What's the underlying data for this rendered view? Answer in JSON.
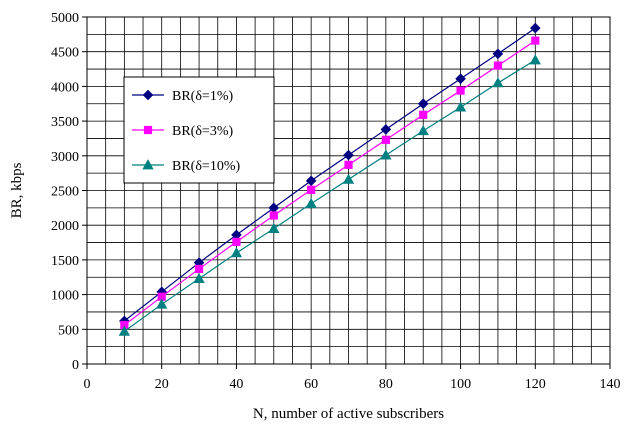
{
  "chart_data": {
    "type": "line",
    "xlabel": "N, number of active subscribers",
    "ylabel": "BR, kbps",
    "xlim": [
      0,
      140
    ],
    "ylim": [
      0,
      5000
    ],
    "x_ticks": [
      0,
      20,
      40,
      60,
      80,
      100,
      120,
      140
    ],
    "y_ticks": [
      0,
      500,
      1000,
      1500,
      2000,
      2500,
      3000,
      3500,
      4000,
      4500,
      5000
    ],
    "x_grid_step": 5,
    "y_grid_step": 250,
    "grid": true,
    "legend_position": "upper-left",
    "x": [
      10,
      20,
      30,
      40,
      50,
      60,
      70,
      80,
      90,
      100,
      110,
      120
    ],
    "series": [
      {
        "name": "BR(δ=1%)",
        "color": "#000080",
        "marker": "diamond",
        "values": [
          620,
          1040,
          1460,
          1860,
          2250,
          2640,
          3010,
          3380,
          3750,
          4110,
          4470,
          4840
        ]
      },
      {
        "name": "BR(δ=3%)",
        "color": "#ff00ff",
        "marker": "square",
        "values": [
          560,
          970,
          1370,
          1760,
          2140,
          2510,
          2870,
          3230,
          3590,
          3940,
          4300,
          4660
        ]
      },
      {
        "name": "BR(δ=10%)",
        "color": "#008080",
        "marker": "triangle",
        "values": [
          470,
          860,
          1230,
          1600,
          1950,
          2310,
          2660,
          3010,
          3360,
          3700,
          4050,
          4380
        ]
      }
    ]
  }
}
